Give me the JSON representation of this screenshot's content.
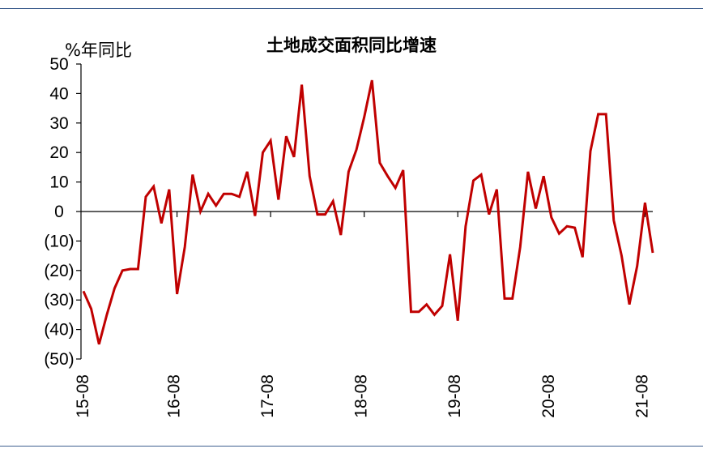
{
  "chart_data": {
    "type": "line",
    "title": "土地成交面积同比增速",
    "ylabel": "%年同比",
    "xlabel": "",
    "ylim": [
      -50,
      50
    ],
    "yticks": [
      50,
      40,
      30,
      20,
      10,
      0,
      -10,
      -20,
      -30,
      -40,
      -50
    ],
    "ytick_labels": [
      "50",
      "40",
      "30",
      "20",
      "10",
      "0",
      "(10)",
      "(20)",
      "(30)",
      "(40)",
      "(50)"
    ],
    "xtick_labels": [
      "15-08",
      "16-08",
      "17-08",
      "18-08",
      "19-08",
      "20-08",
      "21-08"
    ],
    "grid": false,
    "line_color": "#c00000",
    "series": [
      {
        "values": [
          -27,
          -33,
          -45,
          -35,
          -26,
          -20,
          -19.5,
          -19.5,
          5,
          8.5,
          -4,
          7.5,
          -28,
          -12,
          12.5,
          0,
          6,
          2,
          6,
          6,
          5,
          13.5,
          -1.5,
          20,
          24,
          4,
          25.5,
          18.5,
          43,
          12,
          -1,
          -1,
          3.5,
          -8,
          13.5,
          21,
          32,
          44.5,
          16.5,
          12,
          8,
          14,
          -34,
          -34,
          -31.5,
          -35,
          -32,
          -14.5,
          -37,
          -5,
          10.5,
          12.5,
          -1,
          7.5,
          -29.5,
          -29.5,
          -12,
          13.5,
          1,
          12,
          -2,
          -7.5,
          -5,
          -5.5,
          -15.5,
          20.5,
          33,
          33,
          -3,
          -15,
          -31.5,
          -18.5,
          3,
          -14
        ]
      }
    ]
  }
}
